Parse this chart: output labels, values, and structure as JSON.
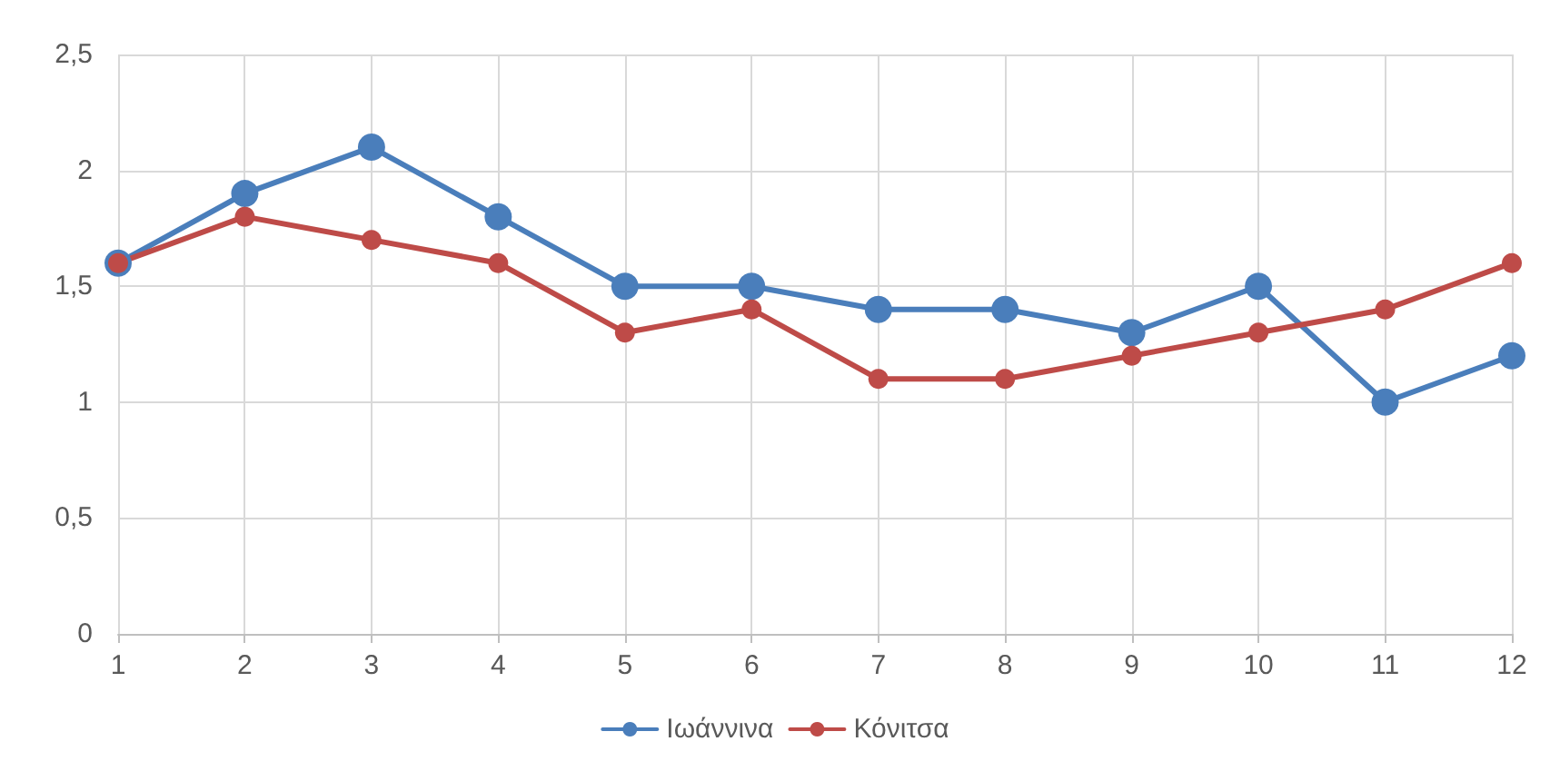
{
  "chart_data": {
    "type": "line",
    "x": [
      1,
      2,
      3,
      4,
      5,
      6,
      7,
      8,
      9,
      10,
      11,
      12
    ],
    "series": [
      {
        "name": "Ιωάννινα",
        "color": "#4a7ebb",
        "values": [
          1.6,
          1.9,
          2.1,
          1.8,
          1.5,
          1.5,
          1.4,
          1.4,
          1.3,
          1.5,
          1.0,
          1.2
        ]
      },
      {
        "name": "Κόνιτσα",
        "color": "#be4b48",
        "values": [
          1.6,
          1.8,
          1.7,
          1.6,
          1.3,
          1.4,
          1.1,
          1.1,
          1.2,
          1.3,
          1.4,
          1.6
        ]
      }
    ],
    "xlim": [
      1,
      12
    ],
    "xticks": [
      1,
      2,
      3,
      4,
      5,
      6,
      7,
      8,
      9,
      10,
      11,
      12
    ],
    "ylim": [
      0,
      2.5
    ],
    "yticks": [
      0,
      {
        "value": 0.5,
        "label": "0,5"
      },
      1,
      {
        "value": 1.5,
        "label": "1,5"
      },
      2,
      {
        "value": 2.5,
        "label": "2,5"
      }
    ],
    "grid": true,
    "legend": "bottom",
    "marker": "circle",
    "line_style": "solid"
  }
}
